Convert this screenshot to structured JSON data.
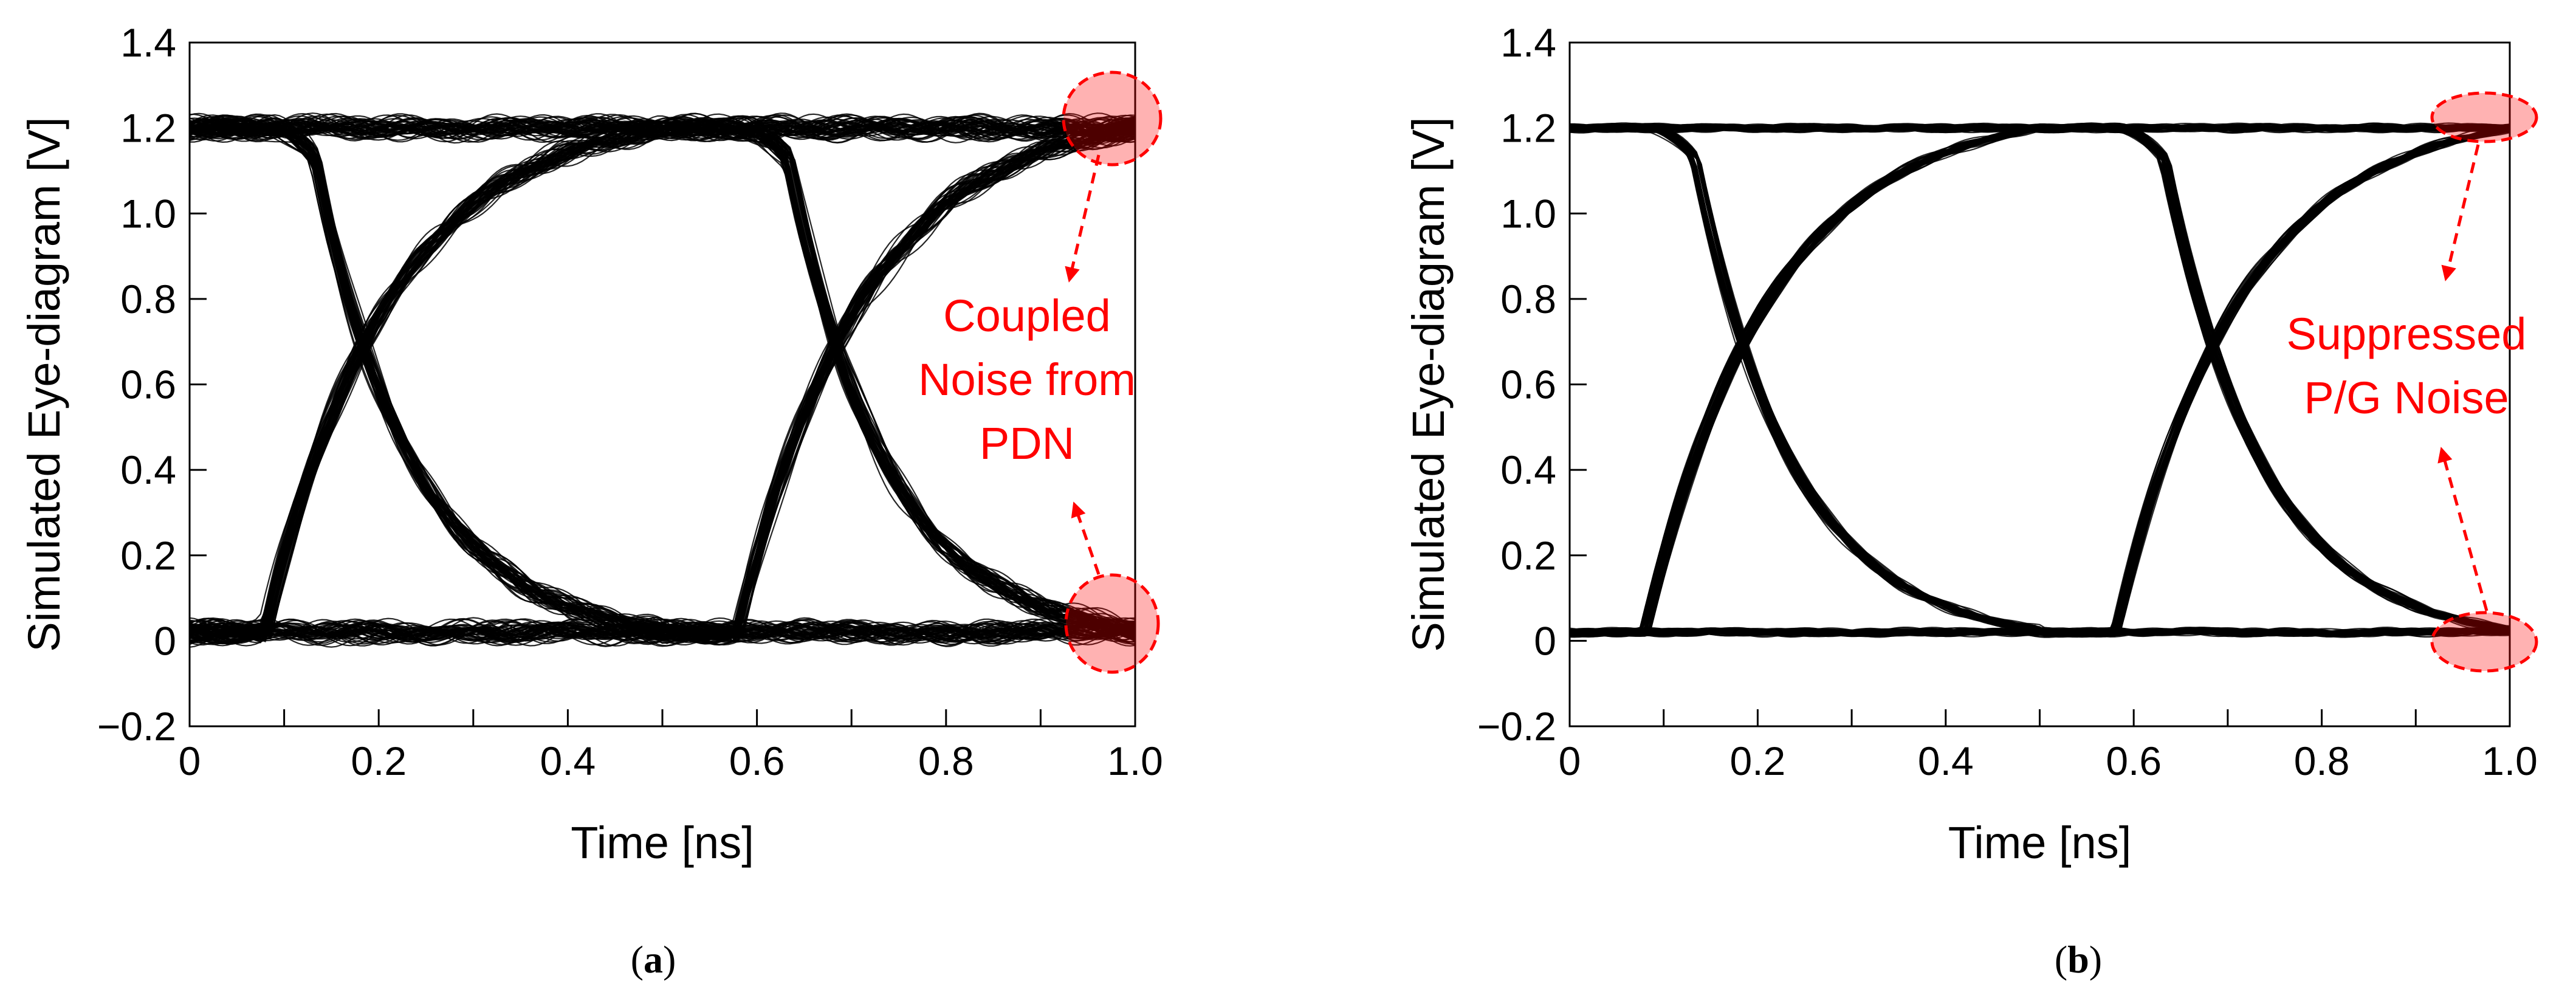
{
  "chart_data": [
    {
      "type": "line",
      "panel_label": "a",
      "xlabel": "Time [ns]",
      "ylabel": "Simulated Eye-diagram [V]",
      "xlim": [
        0,
        1.0
      ],
      "ylim": [
        -0.2,
        1.4
      ],
      "x_ticks": [
        "0",
        "0.2",
        "0.4",
        "0.6",
        "0.8",
        "1.0"
      ],
      "y_ticks": [
        "−0.2",
        "0",
        "0.2",
        "0.4",
        "0.6",
        "0.8",
        "1.0",
        "1.2",
        "1.4"
      ],
      "grid": false,
      "eye": {
        "high_level": 1.2,
        "low_level": 0.02,
        "crossing_level": 0.6,
        "crossing_times": [
          0.165,
          0.665
        ],
        "transition_start_times": [
          0.08,
          0.58
        ],
        "noise_amplitude": 0.035
      },
      "annotation": [
        "Coupled",
        "Noise from",
        "PDN"
      ],
      "highlight_color": "#ff0000"
    },
    {
      "type": "line",
      "panel_label": "b",
      "xlabel": "Time [ns]",
      "ylabel": "Simulated Eye-diagram [V]",
      "xlim": [
        0,
        1.0
      ],
      "ylim": [
        -0.2,
        1.4
      ],
      "x_ticks": [
        "0",
        "0.2",
        "0.4",
        "0.6",
        "0.8",
        "1.0"
      ],
      "y_ticks": [
        "−0.2",
        "0",
        "0.2",
        "0.4",
        "0.6",
        "0.8",
        "1.0",
        "1.2",
        "1.4"
      ],
      "grid": false,
      "eye": {
        "high_level": 1.2,
        "low_level": 0.02,
        "crossing_level": 0.6,
        "crossing_times": [
          0.165,
          0.665
        ],
        "transition_start_times": [
          0.08,
          0.58
        ],
        "noise_amplitude": 0.012
      },
      "annotation": [
        "Suppressed",
        "P/G Noise"
      ],
      "highlight_color": "#ff0000"
    }
  ]
}
